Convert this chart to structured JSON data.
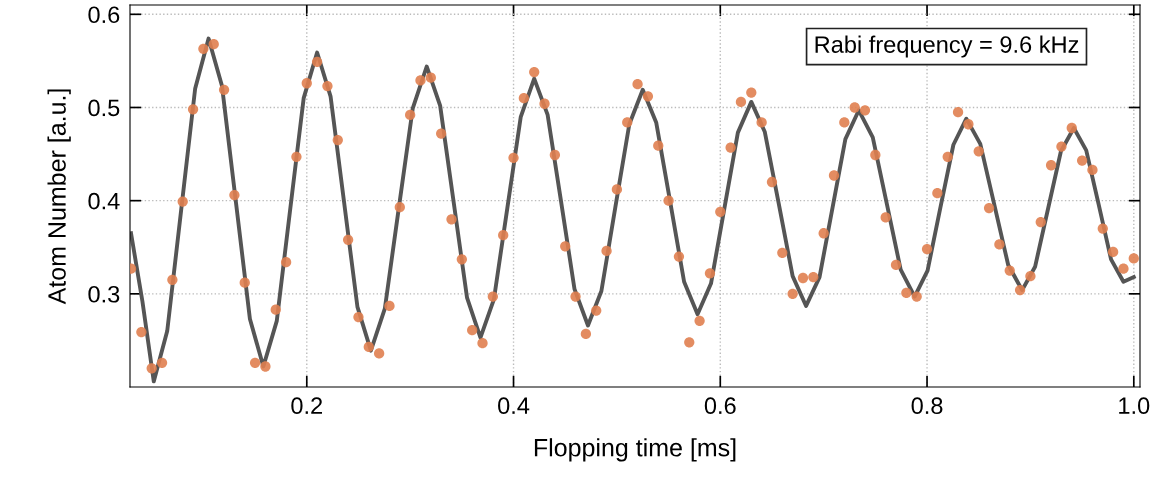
{
  "chart_data": {
    "type": "scatter",
    "xlabel": "Flopping time [ms]",
    "ylabel": "Atom Number [a.u.]",
    "annotations": [
      "Rabi frequency = 9.6 kHz"
    ],
    "xlim": [
      0.029,
      1.006
    ],
    "ylim": [
      0.2,
      0.61
    ],
    "xticks": [
      0.2,
      0.4,
      0.6,
      0.8,
      {
        "value": 1.0,
        "label": "1.0"
      }
    ],
    "yticks": [
      0.3,
      0.4,
      0.5,
      0.6
    ],
    "grid": true,
    "legend": false,
    "series": [
      {
        "color": "#e08050",
        "marker": "circle",
        "x": [
          0.03,
          0.04,
          0.05,
          0.06,
          0.07,
          0.08,
          0.09,
          0.1,
          0.11,
          0.12,
          0.13,
          0.14,
          0.15,
          0.16,
          0.17,
          0.18,
          0.19,
          0.2,
          0.21,
          0.22,
          0.23,
          0.24,
          0.25,
          0.26,
          0.27,
          0.28,
          0.29,
          0.3,
          0.31,
          0.32,
          0.33,
          0.34,
          0.35,
          0.36,
          0.37,
          0.38,
          0.39,
          0.4,
          0.41,
          0.42,
          0.43,
          0.44,
          0.45,
          0.46,
          0.47,
          0.48,
          0.49,
          0.5,
          0.51,
          0.52,
          0.53,
          0.54,
          0.55,
          0.56,
          0.57,
          0.58,
          0.59,
          0.6,
          0.61,
          0.62,
          0.63,
          0.64,
          0.65,
          0.66,
          0.67,
          0.68,
          0.69,
          0.7,
          0.71,
          0.72,
          0.73,
          0.74,
          0.75,
          0.76,
          0.77,
          0.78,
          0.79,
          0.8,
          0.81,
          0.82,
          0.83,
          0.84,
          0.85,
          0.86,
          0.87,
          0.88,
          0.89,
          0.9,
          0.91,
          0.92,
          0.93,
          0.94,
          0.95,
          0.96,
          0.97,
          0.98,
          0.99,
          1.0
        ],
        "values": [
          0.327,
          0.259,
          0.22,
          0.226,
          0.315,
          0.399,
          0.498,
          0.563,
          0.568,
          0.519,
          0.406,
          0.312,
          0.226,
          0.222,
          0.283,
          0.334,
          0.447,
          0.526,
          0.549,
          0.523,
          0.465,
          0.358,
          0.275,
          0.243,
          0.236,
          0.287,
          0.393,
          0.492,
          0.529,
          0.532,
          0.472,
          0.38,
          0.337,
          0.261,
          0.247,
          0.297,
          0.363,
          0.446,
          0.51,
          0.538,
          0.504,
          0.449,
          0.351,
          0.297,
          0.257,
          0.282,
          0.346,
          0.412,
          0.484,
          0.525,
          0.512,
          0.459,
          0.4,
          0.34,
          0.248,
          0.271,
          0.322,
          0.388,
          0.457,
          0.506,
          0.516,
          0.484,
          0.42,
          0.344,
          0.3,
          0.317,
          0.318,
          0.365,
          0.427,
          0.484,
          0.5,
          0.497,
          0.449,
          0.382,
          0.331,
          0.301,
          0.297,
          0.348,
          0.408,
          0.447,
          0.495,
          0.482,
          0.453,
          0.392,
          0.353,
          0.325,
          0.304,
          0.319,
          0.377,
          0.438,
          0.458,
          0.478,
          0.443,
          0.433,
          0.37,
          0.345,
          0.327,
          0.338
        ]
      },
      {
        "type": "line",
        "color": "#555555",
        "line_style": "solid",
        "marker": "none",
        "x": [
          0.03,
          0.041,
          0.052,
          0.065,
          0.0785,
          0.092,
          0.105,
          0.118,
          0.1315,
          0.145,
          0.158,
          0.171,
          0.184,
          0.197,
          0.21,
          0.223,
          0.236,
          0.249,
          0.262,
          0.2755,
          0.289,
          0.3025,
          0.316,
          0.329,
          0.342,
          0.355,
          0.368,
          0.381,
          0.394,
          0.407,
          0.42,
          0.433,
          0.446,
          0.459,
          0.472,
          0.485,
          0.4985,
          0.512,
          0.525,
          0.538,
          0.5515,
          0.565,
          0.578,
          0.591,
          0.604,
          0.617,
          0.63,
          0.643,
          0.6565,
          0.67,
          0.683,
          0.696,
          0.7085,
          0.721,
          0.734,
          0.7475,
          0.761,
          0.7745,
          0.788,
          0.8005,
          0.813,
          0.8255,
          0.838,
          0.8515,
          0.865,
          0.8785,
          0.892,
          0.9045,
          0.917,
          0.9295,
          0.942,
          0.954,
          0.966,
          0.978,
          0.99,
          1.0
        ],
        "values": [
          0.365,
          0.292,
          0.206,
          0.26,
          0.39,
          0.52,
          0.574,
          0.523,
          0.398,
          0.273,
          0.222,
          0.271,
          0.391,
          0.51,
          0.559,
          0.512,
          0.399,
          0.286,
          0.239,
          0.284,
          0.392,
          0.499,
          0.544,
          0.502,
          0.399,
          0.296,
          0.253,
          0.294,
          0.392,
          0.49,
          0.531,
          0.492,
          0.399,
          0.305,
          0.266,
          0.303,
          0.393,
          0.482,
          0.519,
          0.484,
          0.399,
          0.313,
          0.278,
          0.311,
          0.392,
          0.473,
          0.506,
          0.474,
          0.397,
          0.319,
          0.287,
          0.318,
          0.392,
          0.466,
          0.497,
          0.468,
          0.397,
          0.326,
          0.297,
          0.325,
          0.393,
          0.46,
          0.488,
          0.461,
          0.396,
          0.331,
          0.304,
          0.329,
          0.391,
          0.453,
          0.478,
          0.454,
          0.396,
          0.337,
          0.313,
          0.318
        ]
      }
    ]
  }
}
